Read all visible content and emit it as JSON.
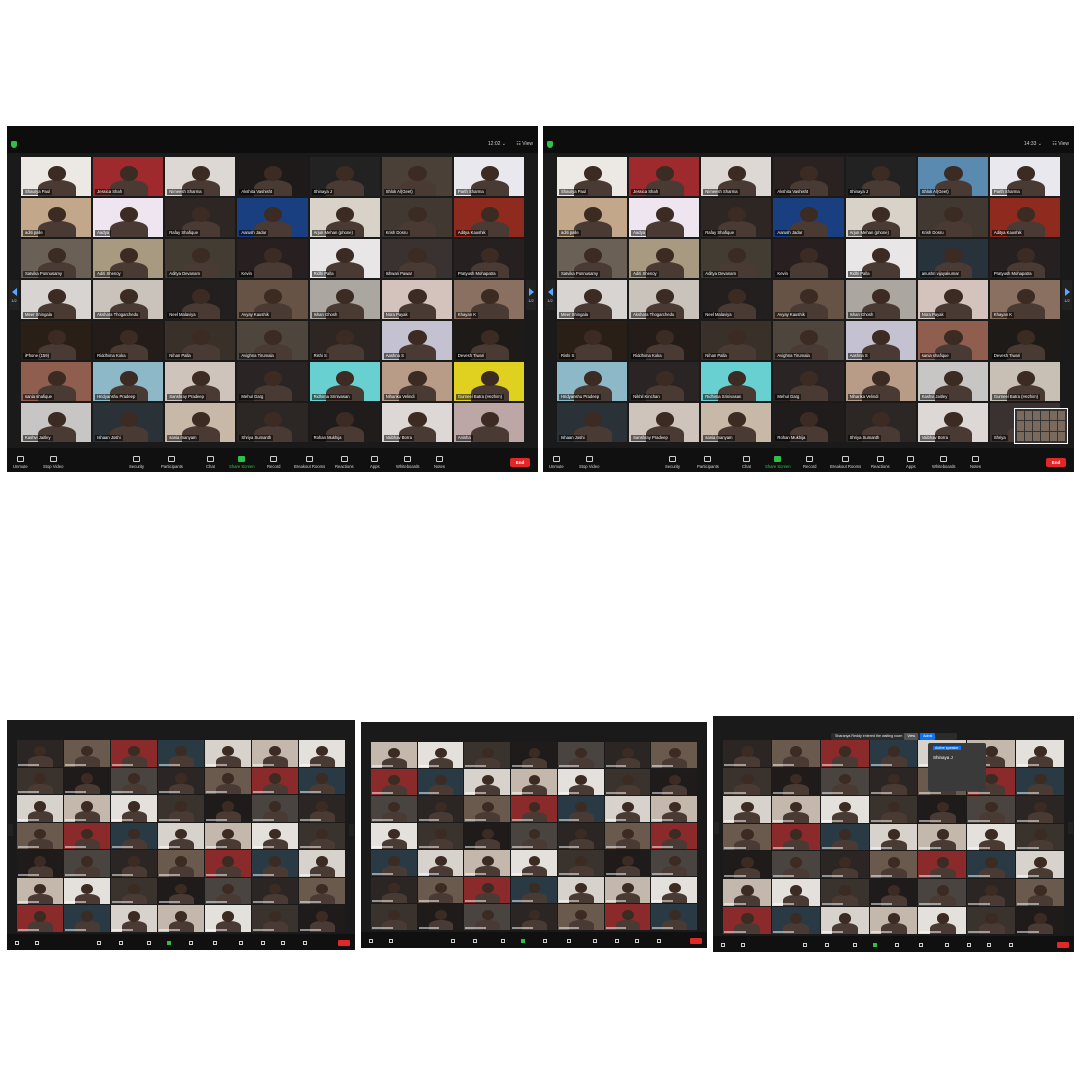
{
  "colors": {
    "zoom_bg": "#1a1a1a",
    "toolbar_bg": "#101010",
    "end_red": "#e02828",
    "active_green": "#35c24a",
    "accent_blue": "#0e72ed"
  },
  "shot_a": {
    "time": "12:02 ⌄",
    "view": "☷ View",
    "page_left": "1/2",
    "page_right": "1/2",
    "tiles": [
      {
        "name": "Shaurya Paul",
        "bg": "#ece8e4"
      },
      {
        "name": "Jessica Shah",
        "bg": "#9f2a2e"
      },
      {
        "name": "Nimeesh Sharma",
        "bg": "#ddd8d4"
      },
      {
        "name": "Akshita Vashisht",
        "bg": "#1e1a1a"
      },
      {
        "name": "Shinaya J",
        "bg": "#222222"
      },
      {
        "name": "Shlok Al(Geet)",
        "bg": "#4a4038"
      },
      {
        "name": "Parth Sharma",
        "bg": "#e8e8ee"
      },
      {
        "name": "aditi palle",
        "bg": "#c2a78a"
      },
      {
        "name": "Aadya",
        "bg": "#eee5f0"
      },
      {
        "name": "Rafay Shafique",
        "bg": "#2e2622"
      },
      {
        "name": "Aarush Jadar",
        "bg": "#1a3f80"
      },
      {
        "name": "Arjun Mehan (phone)",
        "bg": "#d9d2c8"
      },
      {
        "name": "Krish Dosru",
        "bg": "#413832"
      },
      {
        "name": "Aditya Kaushik",
        "bg": "#8f2a1e"
      },
      {
        "name": "Satvika Ponnusamy",
        "bg": "#6a6056"
      },
      {
        "name": "Aditi Shenoy",
        "bg": "#a89a80"
      },
      {
        "name": "Aditya Devanam",
        "bg": "#423c32"
      },
      {
        "name": "Kevin",
        "bg": "#282020"
      },
      {
        "name": "Ridhi Palla",
        "bg": "#e8e6e6"
      },
      {
        "name": "Ishwari Pawar",
        "bg": "#3a3230"
      },
      {
        "name": "Pratyush Mohapatra",
        "bg": "#262020"
      },
      {
        "name": "Meer Shingala",
        "bg": "#d8d4d2",
        "active": true
      },
      {
        "name": "Akshara Thogarchedu",
        "bg": "#cac3bc"
      },
      {
        "name": "Neel Malaviya",
        "bg": "#241f1f"
      },
      {
        "name": "Avyay Kaushik",
        "bg": "#675246"
      },
      {
        "name": "Ishan Ghosh",
        "bg": "#aca6a0"
      },
      {
        "name": "Nora Payak",
        "bg": "#d4c3bc"
      },
      {
        "name": "Khayan K",
        "bg": "#8a7060"
      },
      {
        "name": "iPhone (159)",
        "bg": "#2a1f17"
      },
      {
        "name": "Riddhima Koka",
        "bg": "#231c18"
      },
      {
        "name": "Nihan Palla",
        "bg": "#3a302a"
      },
      {
        "name": "Avighna Tirumala",
        "bg": "#4e463c"
      },
      {
        "name": "Rishi S",
        "bg": "#2e2622"
      },
      {
        "name": "Aashna S",
        "bg": "#c4c2d0"
      },
      {
        "name": "Devesh Tiwari",
        "bg": "#1e1a18"
      },
      {
        "name": "sania shafique",
        "bg": "#8f5e4e"
      },
      {
        "name": "Hridyanshu Pradeep",
        "bg": "#8cb8c8"
      },
      {
        "name": "Sanshray Pradeep",
        "bg": "#cfc4bc"
      },
      {
        "name": "Mehul Garg",
        "bg": "#2a2424"
      },
      {
        "name": "Ridhima Srinivasan",
        "bg": "#68d0d0"
      },
      {
        "name": "Niharika Velindi",
        "bg": "#b89c88"
      },
      {
        "name": "Gurneel Batra (Hezhim)",
        "bg": "#e0d020"
      },
      {
        "name": "Kashvi Jaitley",
        "bg": "#c8c6c4"
      },
      {
        "name": "Ishaan Joshi",
        "bg": "#2a3238"
      },
      {
        "name": "sania manyam",
        "bg": "#c8b8a8"
      },
      {
        "name": "Shriya Sumanth",
        "bg": "#2c2624"
      },
      {
        "name": "Rohan Mukhija",
        "bg": "#201c1c"
      },
      {
        "name": "Vaibhav Borra",
        "bg": "#ddd8d6"
      },
      {
        "name": "Anisha",
        "bg": "#bca6a6"
      }
    ]
  },
  "shot_b": {
    "time": "14:33 ⌄",
    "view": "☷ View",
    "page_left": "1/2",
    "page_right": "1/2",
    "tiles": [
      {
        "name": "Shaurya Paul",
        "bg": "#ece8e4"
      },
      {
        "name": "Jessica Shah",
        "bg": "#9f2a2e"
      },
      {
        "name": "Nimeesh Sharma",
        "bg": "#ddd8d4"
      },
      {
        "name": "Akshita Vashisht",
        "bg": "#2a2220"
      },
      {
        "name": "Shinaya J",
        "bg": "#222222"
      },
      {
        "name": "Shlok Al(Geet)",
        "bg": "#5a8ab0"
      },
      {
        "name": "Parth Sharma",
        "bg": "#e8e8ee"
      },
      {
        "name": "aditi palle",
        "bg": "#c2a78a"
      },
      {
        "name": "Aadya",
        "bg": "#eee5f0"
      },
      {
        "name": "Rafay Shafique",
        "bg": "#2e2622"
      },
      {
        "name": "Aarush Jadar",
        "bg": "#1a3f80"
      },
      {
        "name": "Arjun Mehan (phone)",
        "bg": "#d9d2c8"
      },
      {
        "name": "Krish Dosru",
        "bg": "#413832"
      },
      {
        "name": "Aditya Kaushik",
        "bg": "#8f2a1e"
      },
      {
        "name": "Satvika Ponnusamy",
        "bg": "#6a6056"
      },
      {
        "name": "Aditi Shenoy",
        "bg": "#a89a80"
      },
      {
        "name": "Aditya Devanam",
        "bg": "#423c32"
      },
      {
        "name": "Kevin",
        "bg": "#282020"
      },
      {
        "name": "Ridhi Palla",
        "bg": "#e8e6e6"
      },
      {
        "name": "anushri vijayakumar",
        "bg": "#28323a",
        "active": true
      },
      {
        "name": "Pratyush Mohapatra",
        "bg": "#262020"
      },
      {
        "name": "Meer Shingala",
        "bg": "#d8d4d2"
      },
      {
        "name": "Akshara Thogarchedu",
        "bg": "#cac3bc"
      },
      {
        "name": "Neel Malaviya",
        "bg": "#241f1f"
      },
      {
        "name": "Avyay Kaushik",
        "bg": "#675246"
      },
      {
        "name": "Ishan Ghosh",
        "bg": "#aca6a0"
      },
      {
        "name": "Nora Payak",
        "bg": "#d4c3bc"
      },
      {
        "name": "Khayan K",
        "bg": "#8a7060"
      },
      {
        "name": "Rishi S",
        "bg": "#2a1f17"
      },
      {
        "name": "Riddhima Koka",
        "bg": "#231c18"
      },
      {
        "name": "Nihan Palla",
        "bg": "#3a302a"
      },
      {
        "name": "Avighna Tirumala",
        "bg": "#4e463c"
      },
      {
        "name": "Aashna S",
        "bg": "#c4c2d0"
      },
      {
        "name": "sania shafique",
        "bg": "#8f5e4e"
      },
      {
        "name": "Devesh Tiwari",
        "bg": "#1e1a18"
      },
      {
        "name": "Hridyanshu Pradeep",
        "bg": "#8cb8c8"
      },
      {
        "name": "Nikhil Kinchan",
        "bg": "#2a2424"
      },
      {
        "name": "Ridhima Srinivasan",
        "bg": "#68d0d0"
      },
      {
        "name": "Mehul Garg",
        "bg": "#2a2424"
      },
      {
        "name": "Niharika Velindi",
        "bg": "#b89c88"
      },
      {
        "name": "Kashvi Jaitley",
        "bg": "#c8c6c4"
      },
      {
        "name": "Gurneel Batra (Hezhim)",
        "bg": "#c8c0b4"
      },
      {
        "name": "Ishaan Joshi",
        "bg": "#2a3238"
      },
      {
        "name": "Sanshray Pradeep",
        "bg": "#cfc4bc"
      },
      {
        "name": "sania manyam",
        "bg": "#c8b8a8"
      },
      {
        "name": "Rohan Mukhija",
        "bg": "#201c1c"
      },
      {
        "name": "Shriya Sumanth",
        "bg": "#2c2624"
      },
      {
        "name": "Vaibhav Borra",
        "bg": "#ddd8d6"
      },
      {
        "name": "Shriya",
        "bg": "#3a3230"
      }
    ]
  },
  "toolbar": {
    "unmute": "Unmute",
    "stop_video": "Stop Video",
    "security": "Security",
    "participants": "Participants",
    "participants_count": "64",
    "chat": "Chat",
    "share_screen": "Share Screen",
    "record": "Record",
    "breakout_rooms": "Breakout Rooms",
    "reactions": "Reactions",
    "apps": "Apps",
    "whiteboards": "Whiteboards",
    "notes": "Notes",
    "end": "End"
  },
  "shot_e": {
    "notice": "Sharanya Reddy entered the waiting room",
    "notice_view": "View",
    "notice_admit": "Admit",
    "popup_label": "Active speaker",
    "popup_name": "Shinaya J"
  }
}
